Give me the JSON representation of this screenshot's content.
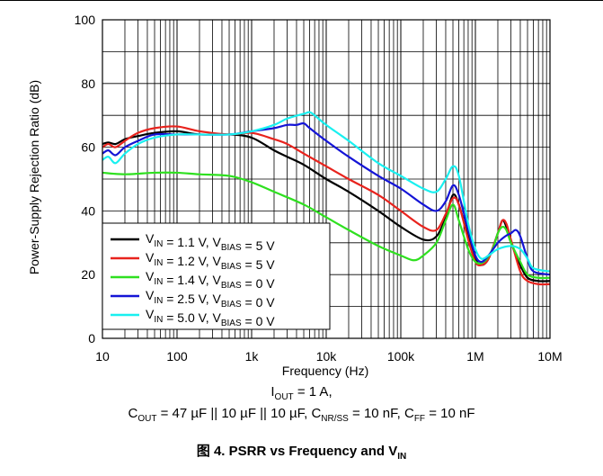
{
  "chart_data": {
    "type": "line",
    "xlabel": "Frequency (Hz)",
    "ylabel": "Power-Supply Rejection Ratio (dB)",
    "x_scale": "log",
    "xlim": [
      10,
      10000000
    ],
    "ylim": [
      0,
      100
    ],
    "grid": true,
    "legend_position": "bottom-left",
    "x_tick_labels": [
      "10",
      "100",
      "1k",
      "10k",
      "100k",
      "1M",
      "10M"
    ],
    "y_tick_labels": [
      "0",
      "20",
      "40",
      "60",
      "80",
      "100"
    ],
    "series": [
      {
        "name": "VIN = 1.1 V, VBIAS = 5 V",
        "legend": {
          "a": "V",
          "a_sub": "IN",
          "b": " = 1.1 V, V",
          "b_sub": "BIAS",
          "c": " = 5 V"
        },
        "color": "#000000",
        "points": [
          [
            10,
            61
          ],
          [
            12,
            61.5
          ],
          [
            15,
            61
          ],
          [
            20,
            62.5
          ],
          [
            30,
            63.5
          ],
          [
            50,
            64.5
          ],
          [
            100,
            65
          ],
          [
            200,
            64
          ],
          [
            500,
            64
          ],
          [
            1000,
            63
          ],
          [
            2000,
            59
          ],
          [
            3000,
            57
          ],
          [
            5000,
            54.5
          ],
          [
            10000,
            50
          ],
          [
            20000,
            46
          ],
          [
            50000,
            40
          ],
          [
            100000,
            35
          ],
          [
            200000,
            31
          ],
          [
            300000,
            32
          ],
          [
            400000,
            38
          ],
          [
            500000,
            45
          ],
          [
            600000,
            42
          ],
          [
            800000,
            32
          ],
          [
            1000000,
            25
          ],
          [
            1200000,
            23
          ],
          [
            1500000,
            25
          ],
          [
            2000000,
            33
          ],
          [
            2300000,
            37
          ],
          [
            2600000,
            35
          ],
          [
            3000000,
            30
          ],
          [
            4000000,
            23
          ],
          [
            5000000,
            19
          ],
          [
            7000000,
            18
          ],
          [
            10000000,
            18
          ]
        ]
      },
      {
        "name": "VIN = 1.2 V, VBIAS = 5 V",
        "legend": {
          "a": "V",
          "a_sub": "IN",
          "b": " = 1.2 V, V",
          "b_sub": "BIAS",
          "c": " = 5 V"
        },
        "color": "#e8231d",
        "points": [
          [
            10,
            60
          ],
          [
            12,
            61
          ],
          [
            15,
            60
          ],
          [
            20,
            62
          ],
          [
            30,
            64.5
          ],
          [
            50,
            66
          ],
          [
            100,
            66.5
          ],
          [
            200,
            65
          ],
          [
            500,
            64
          ],
          [
            1000,
            64.5
          ],
          [
            2000,
            62.5
          ],
          [
            3000,
            61
          ],
          [
            5000,
            58
          ],
          [
            10000,
            54
          ],
          [
            20000,
            50
          ],
          [
            50000,
            45
          ],
          [
            100000,
            40
          ],
          [
            200000,
            35
          ],
          [
            300000,
            34
          ],
          [
            400000,
            39
          ],
          [
            500000,
            44
          ],
          [
            600000,
            42
          ],
          [
            800000,
            31
          ],
          [
            1000000,
            24
          ],
          [
            1200000,
            23
          ],
          [
            1500000,
            25
          ],
          [
            2000000,
            33
          ],
          [
            2300000,
            37
          ],
          [
            2600000,
            36
          ],
          [
            3000000,
            31
          ],
          [
            4000000,
            21
          ],
          [
            5000000,
            18
          ],
          [
            7000000,
            17
          ],
          [
            10000000,
            17
          ]
        ]
      },
      {
        "name": "VIN = 1.4 V, VBIAS = 0 V",
        "legend": {
          "a": "V",
          "a_sub": "IN",
          "b": " = 1.4 V, V",
          "b_sub": "BIAS",
          "c": " = 0 V"
        },
        "color": "#2fe020",
        "points": [
          [
            10,
            52
          ],
          [
            20,
            51.5
          ],
          [
            50,
            52
          ],
          [
            100,
            52
          ],
          [
            200,
            51.5
          ],
          [
            500,
            51
          ],
          [
            1000,
            49
          ],
          [
            2000,
            46
          ],
          [
            5000,
            42
          ],
          [
            10000,
            38
          ],
          [
            20000,
            34
          ],
          [
            50000,
            29
          ],
          [
            100000,
            26
          ],
          [
            150000,
            24.5
          ],
          [
            200000,
            26
          ],
          [
            300000,
            30
          ],
          [
            400000,
            37
          ],
          [
            500000,
            42
          ],
          [
            600000,
            37
          ],
          [
            800000,
            28
          ],
          [
            1000000,
            24
          ],
          [
            1300000,
            24
          ],
          [
            1700000,
            28
          ],
          [
            2000000,
            33
          ],
          [
            2300000,
            35
          ],
          [
            2600000,
            34
          ],
          [
            3000000,
            30
          ],
          [
            4000000,
            24
          ],
          [
            5000000,
            20
          ],
          [
            7000000,
            19
          ],
          [
            10000000,
            19
          ]
        ]
      },
      {
        "name": "VIN = 2.5 V, VBIAS = 0 V",
        "legend": {
          "a": "V",
          "a_sub": "IN",
          "b": " = 2.5 V, V",
          "b_sub": "BIAS",
          "c": " = 0 V"
        },
        "color": "#1414d6",
        "points": [
          [
            10,
            58
          ],
          [
            12,
            59
          ],
          [
            15,
            57.5
          ],
          [
            20,
            60
          ],
          [
            30,
            62
          ],
          [
            50,
            64
          ],
          [
            100,
            64
          ],
          [
            200,
            64
          ],
          [
            500,
            64
          ],
          [
            1000,
            65
          ],
          [
            2000,
            66
          ],
          [
            3000,
            67
          ],
          [
            4000,
            67
          ],
          [
            5000,
            67.5
          ],
          [
            6000,
            66
          ],
          [
            10000,
            62
          ],
          [
            20000,
            57
          ],
          [
            50000,
            51
          ],
          [
            100000,
            47
          ],
          [
            200000,
            42
          ],
          [
            300000,
            40
          ],
          [
            400000,
            43
          ],
          [
            500000,
            48
          ],
          [
            600000,
            45
          ],
          [
            800000,
            34
          ],
          [
            1000000,
            26
          ],
          [
            1200000,
            24
          ],
          [
            1500000,
            26
          ],
          [
            2000000,
            30
          ],
          [
            2500000,
            32
          ],
          [
            3000000,
            33
          ],
          [
            3500000,
            34
          ],
          [
            4000000,
            32
          ],
          [
            5000000,
            25
          ],
          [
            6000000,
            21
          ],
          [
            10000000,
            20
          ]
        ]
      },
      {
        "name": "VIN = 5.0 V, VBIAS = 0 V",
        "legend": {
          "a": "V",
          "a_sub": "IN",
          "b": " = 5.0 V, V",
          "b_sub": "BIAS",
          "c": " = 0 V"
        },
        "color": "#19f0f0",
        "points": [
          [
            10,
            56
          ],
          [
            12,
            57
          ],
          [
            15,
            55
          ],
          [
            20,
            58
          ],
          [
            30,
            61
          ],
          [
            50,
            63
          ],
          [
            100,
            64
          ],
          [
            200,
            64
          ],
          [
            500,
            64
          ],
          [
            1000,
            65
          ],
          [
            2000,
            67
          ],
          [
            3000,
            69
          ],
          [
            5000,
            70.5
          ],
          [
            6000,
            71
          ],
          [
            7000,
            70
          ],
          [
            10000,
            67
          ],
          [
            20000,
            62
          ],
          [
            50000,
            55
          ],
          [
            100000,
            51
          ],
          [
            200000,
            47
          ],
          [
            300000,
            46
          ],
          [
            400000,
            50
          ],
          [
            500000,
            54
          ],
          [
            600000,
            51
          ],
          [
            800000,
            36
          ],
          [
            1000000,
            28
          ],
          [
            1200000,
            25
          ],
          [
            1500000,
            26
          ],
          [
            2000000,
            28
          ],
          [
            3000000,
            29
          ],
          [
            4000000,
            28
          ],
          [
            5000000,
            25
          ],
          [
            6000000,
            22
          ],
          [
            10000000,
            21
          ]
        ]
      }
    ]
  },
  "conditions": {
    "line1": {
      "a": "I",
      "a_sub": "OUT",
      "b": " = 1 A,"
    },
    "line2": {
      "a": "C",
      "a_sub": "OUT",
      "b": " = 47 µF || 10 µF || 10 µF, C",
      "b_sub": "NR/SS",
      "c": " = 10 nF, C",
      "c_sub": "FF",
      "d": " = 10 nF"
    }
  },
  "figure_caption": {
    "prefix": "图 4. PSRR vs Frequency and V",
    "sub": "IN"
  }
}
